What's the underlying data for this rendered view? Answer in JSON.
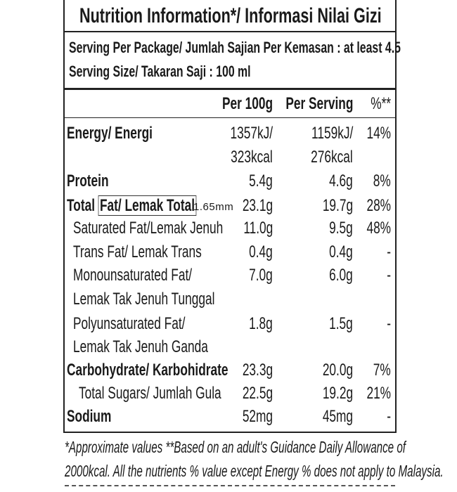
{
  "title": "Nutrition Information*/  Informasi Nilai Gizi",
  "serving_per_package": "Serving Per Package/ Jumlah Sajian Per Kemasan : at least 4.5",
  "serving_size": "Serving Size/ Takaran Saji : 100 ml",
  "headers": {
    "per100": "Per 100g",
    "per_serving": "Per Serving",
    "pct": "%**"
  },
  "rows": [
    {
      "label": "Energy/ Energi",
      "label2": "",
      "per100": "1357kJ/",
      "per100_2": "323kcal",
      "serving": "1159kJ/",
      "serving_2": "276kcal",
      "pct": "14%"
    },
    {
      "label": "Protein",
      "per100": "5.4g",
      "serving": "4.6g",
      "pct": "8%"
    },
    {
      "label": "Total ",
      "label_underlined": "Fat/ Lemak Total",
      "measure": "1.65mm",
      "per100": "23.1g",
      "serving": "19.7g",
      "pct": "28%"
    },
    {
      "label": "Saturated Fat/Lemak Jenuh",
      "per100": "11.0g",
      "serving": "9.5g",
      "pct": "48%"
    },
    {
      "label": "Trans Fat/ Lemak Trans",
      "per100": "0.4g",
      "serving": "0.4g",
      "pct": "-"
    },
    {
      "label": "Monounsaturated Fat/",
      "label2": "Lemak Tak Jenuh Tunggal",
      "per100": "7.0g",
      "serving": "6.0g",
      "pct": "-"
    },
    {
      "label": "Polyunsaturated Fat/",
      "label2": "Lemak Tak Jenuh Ganda",
      "per100": "1.8g",
      "serving": "1.5g",
      "pct": "-"
    },
    {
      "label": "Carbohydrate/ Karbohidrate",
      "per100": "23.3g",
      "serving": "20.0g",
      "pct": "7%"
    },
    {
      "label": "Total Sugars/ Jumlah Gula",
      "per100": "22.5g",
      "serving": "19.2g",
      "pct": "21%"
    },
    {
      "label": "Sodium",
      "per100": "52mg",
      "serving": "45mg",
      "pct": "-"
    }
  ],
  "footnote_1": "*Approximate values  **Based on an adult's  Guidance Daily Allowance of",
  "footnote_2": "2000kcal. All the nutrients % value except Energy % does not apply to Malaysia."
}
